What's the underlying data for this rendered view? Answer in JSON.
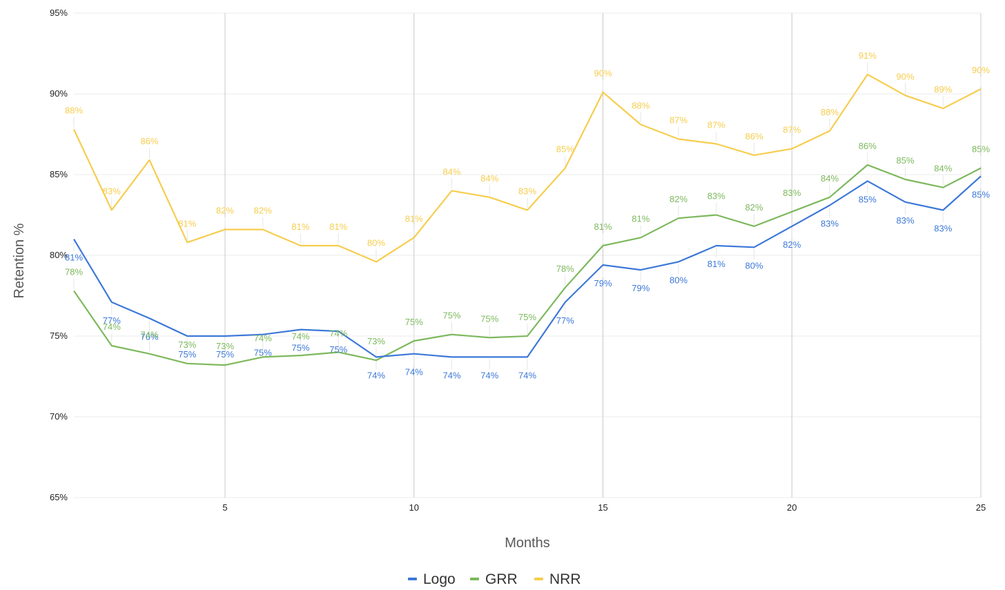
{
  "chart_data": {
    "type": "line",
    "title": "",
    "xlabel": "Months",
    "ylabel": "Retention %",
    "x": [
      1,
      2,
      3,
      4,
      5,
      6,
      7,
      8,
      9,
      10,
      11,
      12,
      13,
      14,
      15,
      16,
      17,
      18,
      19,
      20,
      21,
      22,
      23,
      24,
      25
    ],
    "xlim": [
      1,
      25
    ],
    "ylim": [
      65,
      95
    ],
    "x_ticks": [
      5,
      10,
      15,
      20,
      25
    ],
    "x_tick_labels": [
      "5",
      "10",
      "15",
      "20",
      "25"
    ],
    "y_ticks": [
      65,
      70,
      75,
      80,
      85,
      90,
      95
    ],
    "y_tick_labels": [
      "65%",
      "70%",
      "75%",
      "80%",
      "85%",
      "90%",
      "95%"
    ],
    "legend_position": "bottom",
    "series": [
      {
        "name": "Logo",
        "color": "#3c78d8",
        "values": [
          81.0,
          77.1,
          76.1,
          75.0,
          75.0,
          75.1,
          75.4,
          75.3,
          73.7,
          73.9,
          73.7,
          73.7,
          73.7,
          77.1,
          79.4,
          79.1,
          79.6,
          80.6,
          80.5,
          81.8,
          83.1,
          84.6,
          83.3,
          82.8,
          84.9
        ],
        "labels": [
          "81%",
          "77%",
          "76%",
          "75%",
          "75%",
          "75%",
          "75%",
          "75%",
          "74%",
          "74%",
          "74%",
          "74%",
          "74%",
          "77%",
          "79%",
          "79%",
          "80%",
          "81%",
          "80%",
          "82%",
          "83%",
          "85%",
          "83%",
          "83%",
          "85%"
        ]
      },
      {
        "name": "GRR",
        "color": "#7cb85c",
        "values": [
          77.8,
          74.4,
          73.9,
          73.3,
          73.2,
          73.7,
          73.8,
          74.0,
          73.5,
          74.7,
          75.1,
          74.9,
          75.0,
          78.0,
          80.6,
          81.1,
          82.3,
          82.5,
          81.8,
          82.7,
          83.6,
          85.6,
          84.7,
          84.2,
          85.4
        ],
        "labels": [
          "78%",
          "74%",
          "74%",
          "73%",
          "73%",
          "74%",
          "74%",
          "74%",
          "73%",
          "75%",
          "75%",
          "75%",
          "75%",
          "78%",
          "81%",
          "81%",
          "82%",
          "83%",
          "82%",
          "83%",
          "84%",
          "86%",
          "85%",
          "84%",
          "85%"
        ]
      },
      {
        "name": "NRR",
        "color": "#f6cd4e",
        "values": [
          87.8,
          82.8,
          85.9,
          80.8,
          81.6,
          81.6,
          80.6,
          80.6,
          79.6,
          81.1,
          84.0,
          83.6,
          82.8,
          85.4,
          90.1,
          88.1,
          87.2,
          86.9,
          86.2,
          86.6,
          87.7,
          91.2,
          89.9,
          89.1,
          90.3
        ],
        "labels": [
          "88%",
          "83%",
          "86%",
          "81%",
          "82%",
          "82%",
          "81%",
          "81%",
          "80%",
          "81%",
          "84%",
          "84%",
          "83%",
          "85%",
          "90%",
          "88%",
          "87%",
          "87%",
          "86%",
          "87%",
          "88%",
          "91%",
          "90%",
          "89%",
          "90%"
        ]
      }
    ]
  }
}
